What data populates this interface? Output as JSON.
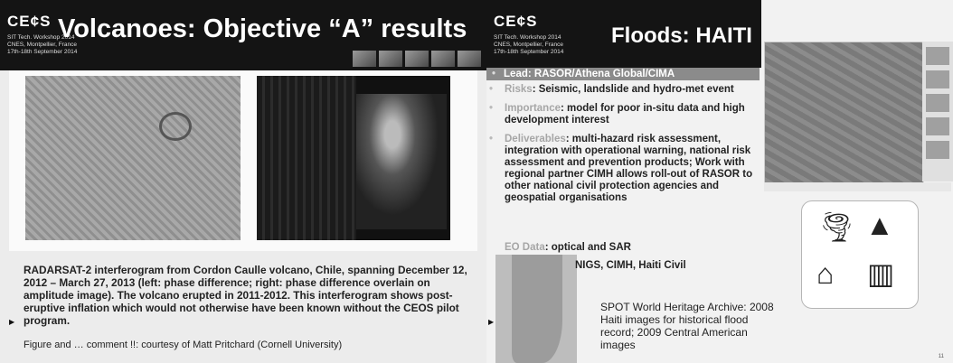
{
  "slide1": {
    "logo": "CE¢S",
    "meta": [
      "SIT Tech. Workshop 2014",
      "CNES, Montpellier, France",
      "17th-18th September 2014"
    ],
    "title": "Volcanoes: Objective “A” results",
    "caption": "RADARSAT-2 interferogram from Cordon Caulle volcano, Chile, spanning December 12, 2012 – March 27, 2013 (left: phase difference; right: phase difference overlain on amplitude image). The volcano erupted in 2011-2012. This interferogram shows post-eruptive inflation which would not otherwise have been known without the CEOS pilot program.",
    "credit": "Figure and … comment !!: courtesy of Matt Pritchard (Cornell University)"
  },
  "slide2": {
    "logo": "CE¢S",
    "meta": [
      "SIT Tech. Workshop 2014",
      "CNES, Montpellier, France",
      "17th-18th September 2014"
    ],
    "title": "Floods: HAITI",
    "lead": "Lead: RASOR/Athena Global/CIMA",
    "bullets": [
      {
        "key": "Risks",
        "text": ": Seismic, landslide and hydro-met event"
      },
      {
        "key": "Importance",
        "text": ": model for poor in-situ data and high development interest"
      },
      {
        "key": "Deliverables",
        "text": ": multi-hazard risk assessment, integration with operational warning, national risk assessment and prevention products; Work with regional partner CIMH allows roll-out of RASOR to other national civil protection agencies and geospatial organisations"
      }
    ],
    "eo_key": "EO Data",
    "eo_text": ": optical and SAR",
    "partners": "NIGS, CIMH, Haiti Civil",
    "spot_text": "SPOT World Heritage Archive: 2008 Haiti images for historical flood record; 2009 Central American images",
    "page_number": "11",
    "icons": [
      "tornado-icon",
      "landslide-icon",
      "flood-house-icon",
      "earthquake-building-icon"
    ]
  }
}
